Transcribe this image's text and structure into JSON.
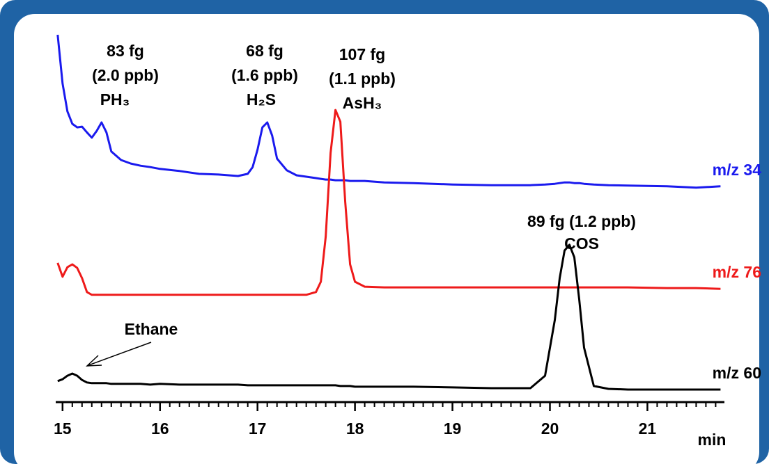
{
  "chart_data": {
    "type": "line",
    "x_label": "min",
    "x": [
      14.95,
      15.0,
      15.05,
      15.1,
      15.15,
      15.2,
      15.25,
      15.3,
      15.35,
      15.4,
      15.45,
      15.5,
      15.6,
      15.7,
      15.8,
      15.9,
      16.0,
      16.2,
      16.4,
      16.6,
      16.8,
      16.9,
      16.95,
      17.0,
      17.05,
      17.1,
      17.15,
      17.2,
      17.3,
      17.4,
      17.5,
      17.6,
      17.65,
      17.7,
      17.75,
      17.8,
      17.85,
      17.9,
      17.95,
      18.0,
      18.1,
      18.3,
      18.6,
      19.0,
      19.4,
      19.8,
      19.95,
      20.05,
      20.1,
      20.15,
      20.2,
      20.25,
      20.3,
      20.35,
      20.45,
      20.6,
      20.8,
      21.2,
      21.5,
      21.75
    ],
    "series": [
      {
        "name": "m/z 34",
        "color": "#1a1aee",
        "values": [
          100,
          86.3,
          78.4,
          74.9,
          73.9,
          74.1,
          72.5,
          71.0,
          72.9,
          75.3,
          72.5,
          67.1,
          64.7,
          63.7,
          63.1,
          62.7,
          62.2,
          61.6,
          60.8,
          60.6,
          60.2,
          60.8,
          62.7,
          67.6,
          73.9,
          75.3,
          71.6,
          65.1,
          61.8,
          60.4,
          60.0,
          59.6,
          59.4,
          59.2,
          59.2,
          59.0,
          59.0,
          59.0,
          58.8,
          58.8,
          58.8,
          58.4,
          58.2,
          57.8,
          57.6,
          57.6,
          57.8,
          58.0,
          58.2,
          58.4,
          58.4,
          58.2,
          58.2,
          58.0,
          57.8,
          57.6,
          57.5,
          57.3,
          56.9,
          57.3
        ]
      },
      {
        "name": "m/z 76",
        "color": "#ee1a1a",
        "values": [
          35.7,
          31.8,
          34.5,
          35.3,
          34.3,
          31.4,
          27.5,
          26.7,
          26.7,
          26.7,
          26.7,
          26.7,
          26.7,
          26.7,
          26.7,
          26.7,
          26.7,
          26.7,
          26.7,
          26.7,
          26.7,
          26.7,
          26.7,
          26.7,
          26.7,
          26.7,
          26.7,
          26.7,
          26.7,
          26.7,
          26.7,
          27.5,
          30.4,
          43.1,
          66.7,
          78.8,
          75.5,
          52.9,
          35.3,
          30.4,
          29.0,
          28.8,
          28.8,
          28.8,
          28.8,
          28.8,
          28.8,
          28.8,
          28.8,
          28.8,
          28.8,
          28.8,
          28.8,
          28.8,
          28.8,
          28.8,
          28.8,
          28.6,
          28.6,
          28.4
        ]
      },
      {
        "name": "m/z 60",
        "color": "#000000",
        "values": [
          2.4,
          2.9,
          3.9,
          4.5,
          3.9,
          2.7,
          2.0,
          1.8,
          1.8,
          1.8,
          1.8,
          1.6,
          1.6,
          1.6,
          1.6,
          1.4,
          1.6,
          1.4,
          1.4,
          1.4,
          1.4,
          1.2,
          1.2,
          1.2,
          1.2,
          1.2,
          1.2,
          1.2,
          1.2,
          1.2,
          1.2,
          1.2,
          1.2,
          1.2,
          1.2,
          1.2,
          1.0,
          1.0,
          1.0,
          0.8,
          0.8,
          0.8,
          0.8,
          0.6,
          0.4,
          0.4,
          3.9,
          19.6,
          31.4,
          39.2,
          40.8,
          37.3,
          25.5,
          11.8,
          1.0,
          0.2,
          0,
          0,
          0,
          0
        ]
      }
    ],
    "xlim": [
      14.93,
      21.79
    ],
    "xticks": [
      15,
      16,
      17,
      18,
      19,
      20,
      21
    ],
    "ylim": [
      0,
      100
    ],
    "annotations": [
      "83 fg",
      "(2.0 ppb)",
      "PH₃",
      "68 fg",
      "(1.6 ppb)",
      "H₂S",
      "107 fg",
      "(1.1 ppb)",
      "AsH₃",
      "89 fg (1.2 ppb)",
      "COS",
      "Ethane"
    ]
  }
}
